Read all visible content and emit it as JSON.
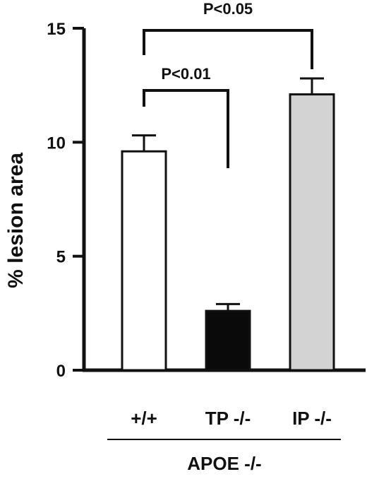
{
  "chart_data": {
    "type": "bar",
    "categories": [
      "+/+",
      "TP -/-",
      "IP -/-"
    ],
    "values": [
      9.6,
      2.6,
      12.1
    ],
    "errors": [
      0.7,
      0.3,
      0.7
    ],
    "colors": [
      "#ffffff",
      "#0a0a0a",
      "#d3d3d3"
    ],
    "ylabel": "% lesion area",
    "ylim": [
      0,
      15
    ],
    "yticks": [
      0,
      5,
      10,
      15
    ],
    "group_label": "APOE -/-",
    "grid": false,
    "comparisons": [
      {
        "from": 0,
        "to": 2,
        "label": "P<0.05"
      },
      {
        "from": 0,
        "to": 1,
        "label": "P<0.01"
      }
    ]
  }
}
